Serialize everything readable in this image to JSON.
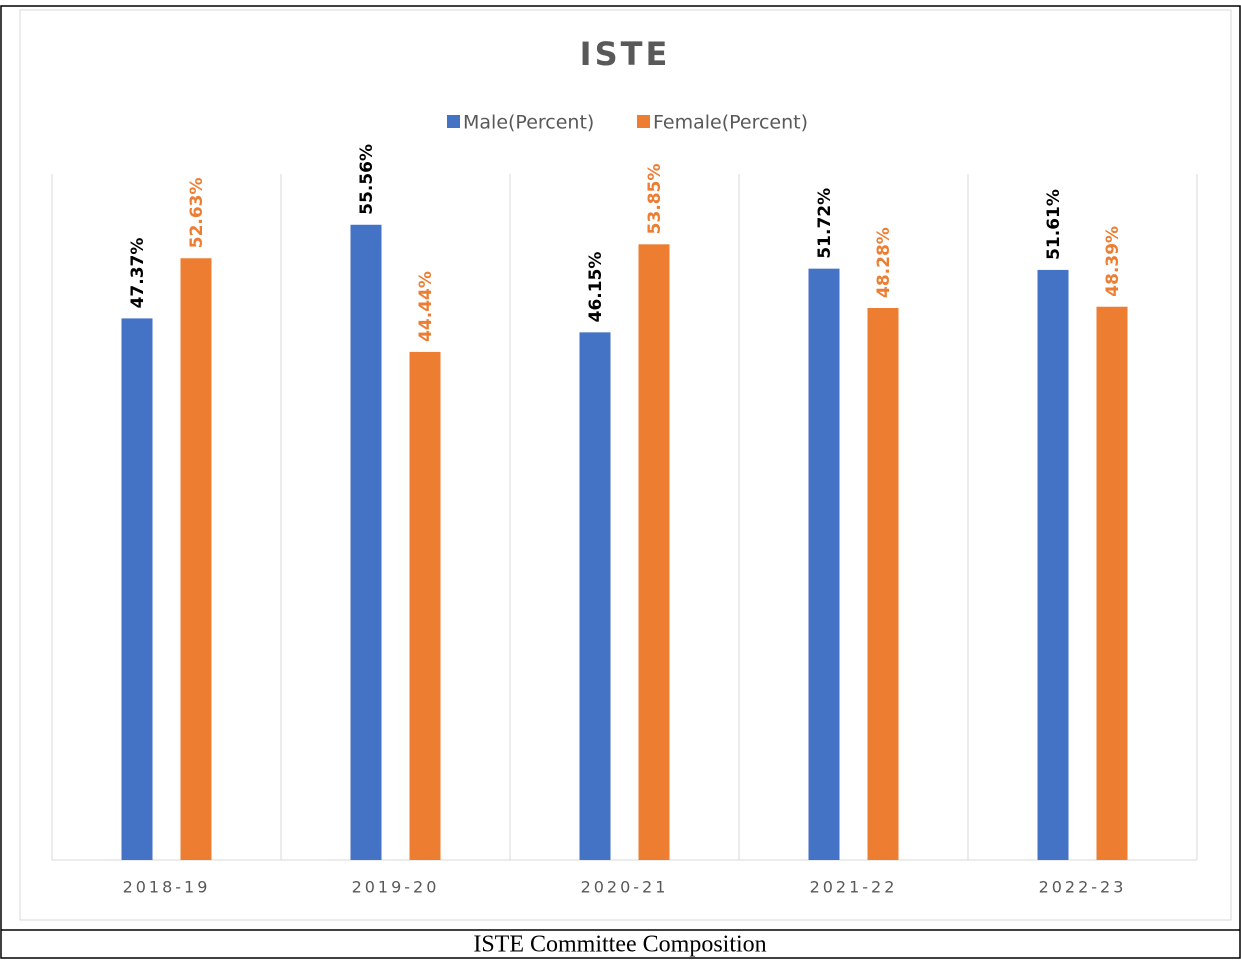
{
  "chart_data": {
    "type": "bar",
    "title": "ISTE",
    "categories": [
      "2018-19",
      "2019-20",
      "2020-21",
      "2021-22",
      "2022-23"
    ],
    "series": [
      {
        "name": "Male(Percent)",
        "color": "#4472c4",
        "label_color": "#000000",
        "values": [
          47.37,
          55.56,
          46.15,
          51.72,
          51.61
        ],
        "value_labels": [
          "47.37%",
          "55.56%",
          "46.15%",
          "51.72%",
          "51.61%"
        ]
      },
      {
        "name": "Female(Percent)",
        "color": "#ed7d31",
        "label_color": "#ed7d31",
        "values": [
          52.63,
          44.44,
          53.85,
          48.28,
          48.39
        ],
        "value_labels": [
          "52.63%",
          "44.44%",
          "53.85%",
          "48.28%",
          "48.39%"
        ]
      }
    ],
    "ylim": [
      0,
      60
    ],
    "legend": "top"
  },
  "caption": "ISTE Committee Composition"
}
